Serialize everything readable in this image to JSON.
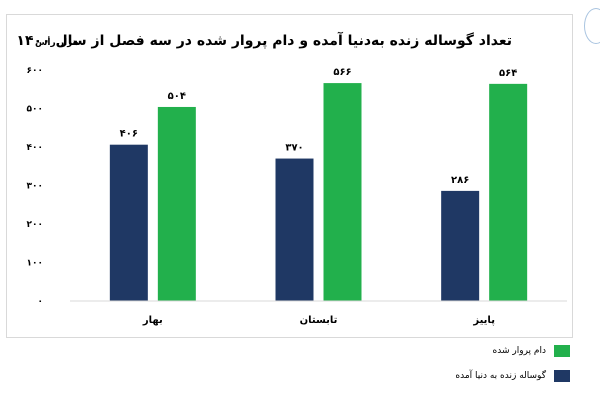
{
  "chart_data": {
    "type": "bar",
    "title": "تعداد گوساله زنده به‌دنیا آمده و دام پروار شده در سه فصل از سال ۱۴۰۰",
    "ylabel": "هزار رأس",
    "xlabel": "",
    "categories": [
      "بهار",
      "تابستان",
      "پاییز"
    ],
    "series": [
      {
        "name": "گوساله زنده به دنیا آمده",
        "color": "#1f3864",
        "values": [
          406,
          370,
          286
        ],
        "labels": [
          "۴۰۶",
          "۳۷۰",
          "۲۸۶"
        ]
      },
      {
        "name": "دام پروار شده",
        "color": "#22b04c",
        "values": [
          504,
          566,
          564
        ],
        "labels": [
          "۵۰۴",
          "۵۶۶",
          "۵۶۴"
        ]
      }
    ],
    "ylim": [
      0,
      600
    ],
    "yticks": [
      0,
      100,
      200,
      300,
      400,
      500,
      600
    ],
    "ytick_labels": [
      "۰",
      "۱۰۰",
      "۲۰۰",
      "۳۰۰",
      "۴۰۰",
      "۵۰۰",
      "۶۰۰"
    ],
    "grid": false,
    "legend_position": "bottom-right"
  }
}
